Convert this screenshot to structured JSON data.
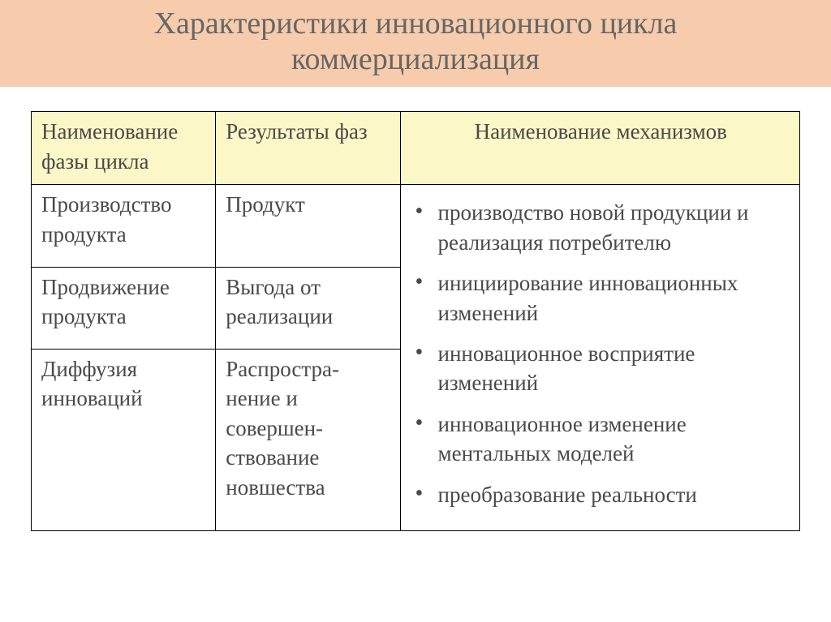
{
  "title": {
    "line1": "Характеристики инновационного цикла",
    "line2": "коммерциализация"
  },
  "colors": {
    "title_bg": "#f6ccac",
    "title_text": "#666666",
    "header_bg": "#fbf7c6",
    "cell_text": "#4a4a4a",
    "border": "#000000",
    "page_bg": "#ffffff"
  },
  "typography": {
    "title_fontsize": 38,
    "cell_fontsize": 27,
    "font_family": "Times New Roman"
  },
  "table": {
    "columns": [
      "Наименование фазы цикла",
      "Результаты фаз",
      "Наименование механизмов"
    ],
    "column_widths_pct": [
      24,
      24,
      52
    ],
    "rows": [
      {
        "phase": "Производство продукта",
        "result": "Продукт"
      },
      {
        "phase": "Продвижение продукта",
        "result": "Выгода от реализации"
      },
      {
        "phase": "Диффузия инноваций",
        "result": "Распростра-нение и совершен-ствование новшества"
      }
    ],
    "mechanisms": [
      "производство новой продукции и реализация потребителю",
      "инициирование инновационных изменений",
      "инновационное восприятие изменений",
      "инновационное изменение ментальных моделей",
      "преобразование реальности"
    ]
  }
}
